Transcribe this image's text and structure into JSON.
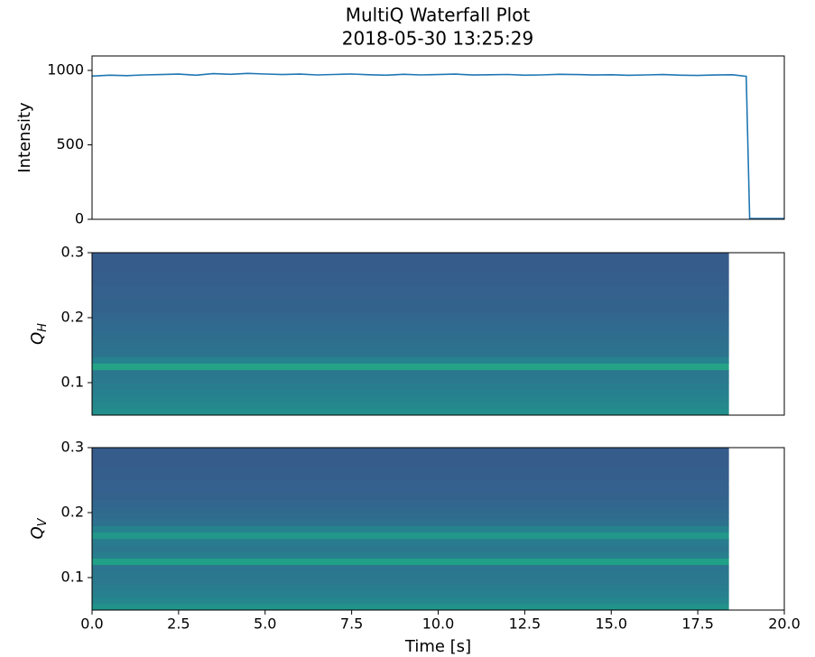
{
  "chart_data": [
    {
      "type": "line",
      "title": "MultiQ Waterfall Plot",
      "subtitle": "2018-05-30 13:25:29",
      "ylabel": "Intensity",
      "color": "#1f77b4",
      "xlim": [
        0,
        20
      ],
      "ylim": [
        0,
        1097
      ],
      "yticks": [
        0,
        500,
        1000
      ],
      "x": [
        0,
        0.5,
        1,
        1.5,
        2,
        2.5,
        3,
        3.5,
        4,
        4.5,
        5,
        5.5,
        6,
        6.5,
        7,
        7.5,
        8,
        8.5,
        9,
        9.5,
        10,
        10.5,
        11,
        11.5,
        12,
        12.5,
        13,
        13.5,
        14,
        14.5,
        15,
        15.5,
        16,
        16.5,
        17,
        17.5,
        18,
        18.5,
        18.9,
        19.0,
        19.5,
        20.0
      ],
      "values": [
        962,
        968,
        965,
        970,
        972,
        975,
        968,
        978,
        974,
        980,
        976,
        972,
        975,
        970,
        973,
        976,
        971,
        968,
        974,
        970,
        972,
        975,
        969,
        971,
        973,
        968,
        970,
        974,
        972,
        969,
        971,
        967,
        970,
        972,
        968,
        966,
        969,
        971,
        960,
        5,
        5,
        5
      ]
    },
    {
      "type": "heatmap",
      "ylabel": "Q",
      "ylabel_sub": "H",
      "colormap": "viridis",
      "zlim": [
        0,
        1
      ],
      "xlim": [
        0,
        20
      ],
      "ylim": [
        0.05,
        0.3
      ],
      "yticks": [
        0.1,
        0.2,
        0.3
      ],
      "xbins": [
        0,
        18.4
      ],
      "ybins": [
        0.05,
        0.06,
        0.07,
        0.08,
        0.09,
        0.1,
        0.11,
        0.12,
        0.13,
        0.14,
        0.15,
        0.16,
        0.17,
        0.18,
        0.19,
        0.2,
        0.21,
        0.22,
        0.23,
        0.24,
        0.25,
        0.26,
        0.27,
        0.28,
        0.29,
        0.3
      ],
      "z": [
        [
          0.56
        ],
        [
          0.53
        ],
        [
          0.51
        ],
        [
          0.49
        ],
        [
          0.47
        ],
        [
          0.46
        ],
        [
          0.45
        ],
        [
          0.66
        ],
        [
          0.5
        ],
        [
          0.43
        ],
        [
          0.42
        ],
        [
          0.41
        ],
        [
          0.4
        ],
        [
          0.39
        ],
        [
          0.38
        ],
        [
          0.37
        ],
        [
          0.36
        ],
        [
          0.36
        ],
        [
          0.35
        ],
        [
          0.35
        ],
        [
          0.34
        ],
        [
          0.34
        ],
        [
          0.33
        ],
        [
          0.33
        ],
        [
          0.33
        ]
      ]
    },
    {
      "type": "heatmap",
      "ylabel": "Q",
      "ylabel_sub": "V",
      "xlabel": "Time [s]",
      "colormap": "viridis",
      "zlim": [
        0,
        1
      ],
      "xlim": [
        0,
        20
      ],
      "ylim": [
        0.05,
        0.3
      ],
      "yticks": [
        0.1,
        0.2,
        0.3
      ],
      "xticks": [
        {
          "value": 0,
          "label": "0.0"
        },
        2.5,
        {
          "value": 5,
          "label": "5.0"
        },
        7.5,
        {
          "value": 10,
          "label": "10.0"
        },
        12.5,
        {
          "value": 15,
          "label": "15.0"
        },
        17.5,
        {
          "value": 20,
          "label": "20.0"
        }
      ],
      "xbins": [
        0,
        18.4
      ],
      "ybins": [
        0.05,
        0.06,
        0.07,
        0.08,
        0.09,
        0.1,
        0.11,
        0.12,
        0.13,
        0.14,
        0.15,
        0.16,
        0.17,
        0.18,
        0.19,
        0.2,
        0.21,
        0.22,
        0.23,
        0.24,
        0.25,
        0.26,
        0.27,
        0.28,
        0.29,
        0.3
      ],
      "z": [
        [
          0.58
        ],
        [
          0.52
        ],
        [
          0.49
        ],
        [
          0.47
        ],
        [
          0.46
        ],
        [
          0.45
        ],
        [
          0.44
        ],
        [
          0.64
        ],
        [
          0.48
        ],
        [
          0.45
        ],
        [
          0.47
        ],
        [
          0.6
        ],
        [
          0.5
        ],
        [
          0.42
        ],
        [
          0.4
        ],
        [
          0.38
        ],
        [
          0.37
        ],
        [
          0.36
        ],
        [
          0.35
        ],
        [
          0.35
        ],
        [
          0.34
        ],
        [
          0.34
        ],
        [
          0.33
        ],
        [
          0.33
        ],
        [
          0.33
        ]
      ]
    }
  ]
}
